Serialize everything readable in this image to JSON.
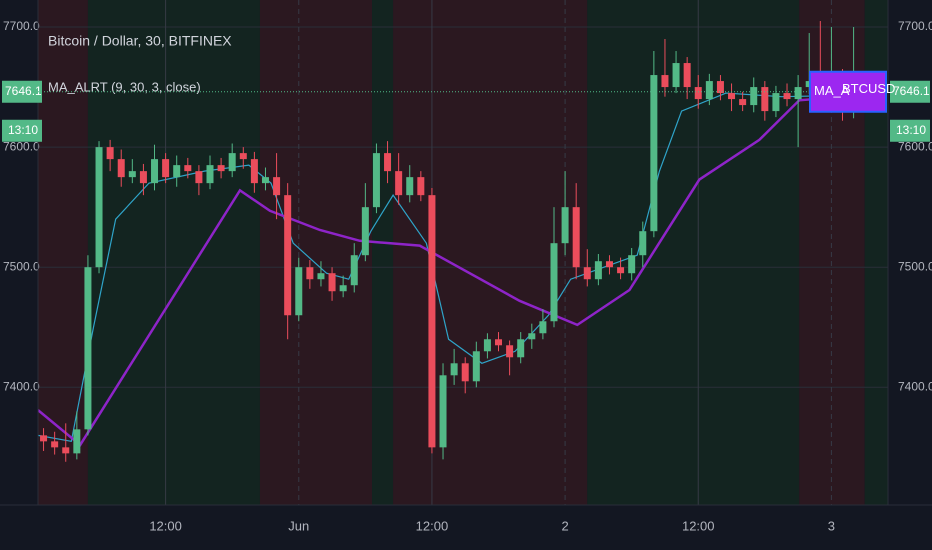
{
  "chart_data": {
    "type": "candlestick",
    "title": "Bitcoin / Dollar, 30, BITFINEX",
    "indicator": "MA_ALRT (9, 30, 3, close)",
    "open": [
      7360,
      7355,
      7350,
      7345,
      7365,
      7500,
      7600,
      7590,
      7575,
      7580,
      7570,
      7590,
      7575,
      7585,
      7580,
      7570,
      7585,
      7580,
      7595,
      7590,
      7570,
      7575,
      7560,
      7460,
      7500,
      7490,
      7495,
      7480,
      7485,
      7510,
      7550,
      7595,
      7580,
      7560,
      7575,
      7560,
      7350,
      7410,
      7420,
      7405,
      7430,
      7440,
      7435,
      7425,
      7440,
      7445,
      7455,
      7520,
      7550,
      7500,
      7490,
      7505,
      7500,
      7495,
      7510,
      7530,
      7660,
      7650,
      7670,
      7650,
      7640,
      7655,
      7645,
      7640,
      7635,
      7650,
      7630,
      7645,
      7640,
      7650,
      7655,
      7640,
      7645,
      7630,
      7650,
      7640
    ],
    "high": [
      7366,
      7363,
      7370,
      7380,
      7510,
      7605,
      7606,
      7598,
      7590,
      7586,
      7602,
      7595,
      7593,
      7591,
      7585,
      7593,
      7591,
      7603,
      7600,
      7596,
      7583,
      7595,
      7570,
      7508,
      7506,
      7505,
      7500,
      7493,
      7520,
      7570,
      7603,
      7605,
      7595,
      7585,
      7580,
      7566,
      7420,
      7432,
      7425,
      7438,
      7445,
      7446,
      7439,
      7446,
      7453,
      7465,
      7550,
      7580,
      7570,
      7515,
      7511,
      7510,
      7508,
      7516,
      7538,
      7680,
      7690,
      7680,
      7675,
      7660,
      7661,
      7660,
      7653,
      7646,
      7658,
      7655,
      7651,
      7653,
      7660,
      7695,
      7705,
      7700,
      7665,
      7700,
      7660,
      7656
    ],
    "low": [
      7347,
      7344,
      7338,
      7340,
      7360,
      7495,
      7580,
      7567,
      7570,
      7560,
      7564,
      7570,
      7567,
      7574,
      7560,
      7565,
      7574,
      7575,
      7582,
      7562,
      7564,
      7540,
      7440,
      7455,
      7482,
      7484,
      7472,
      7475,
      7479,
      7505,
      7545,
      7570,
      7552,
      7554,
      7555,
      7345,
      7340,
      7402,
      7395,
      7400,
      7424,
      7430,
      7410,
      7420,
      7432,
      7440,
      7450,
      7510,
      7490,
      7484,
      7485,
      7494,
      7490,
      7489,
      7500,
      7525,
      7642,
      7645,
      7640,
      7632,
      7635,
      7639,
      7630,
      7630,
      7629,
      7622,
      7625,
      7634,
      7600,
      7644,
      7630,
      7632,
      7622,
      7624,
      7635,
      7634
    ],
    "close": [
      7355,
      7350,
      7345,
      7365,
      7500,
      7600,
      7590,
      7575,
      7580,
      7570,
      7590,
      7575,
      7585,
      7580,
      7570,
      7585,
      7580,
      7595,
      7590,
      7570,
      7575,
      7560,
      7460,
      7500,
      7490,
      7495,
      7480,
      7485,
      7510,
      7550,
      7595,
      7580,
      7560,
      7575,
      7560,
      7350,
      7410,
      7420,
      7405,
      7430,
      7440,
      7435,
      7425,
      7440,
      7445,
      7455,
      7520,
      7550,
      7500,
      7490,
      7505,
      7500,
      7495,
      7510,
      7530,
      7660,
      7650,
      7670,
      7650,
      7640,
      7655,
      7645,
      7640,
      7635,
      7650,
      7630,
      7645,
      7640,
      7650,
      7655,
      7640,
      7645,
      7630,
      7650,
      7640,
      7646
    ],
    "up_color": "#53b987",
    "down_color": "#eb4d5c",
    "series": [
      {
        "color": "#2fa4c9",
        "x": [
          0,
          3,
          5,
          7,
          10,
          15,
          19,
          21,
          23,
          26,
          28,
          30,
          32,
          35,
          37,
          40,
          43,
          46,
          48,
          51,
          54,
          56,
          58,
          62,
          67,
          72,
          75.5
        ],
        "values": [
          7360,
          7355,
          7450,
          7540,
          7570,
          7580,
          7585,
          7570,
          7520,
          7495,
          7490,
          7530,
          7560,
          7520,
          7440,
          7420,
          7430,
          7460,
          7490,
          7500,
          7510,
          7580,
          7630,
          7645,
          7642,
          7643,
          7645
        ]
      },
      {
        "color": "#8e24c8",
        "x": [
          0,
          3.8,
          18.2,
          20.9,
          25.4,
          29,
          34.4,
          43.4,
          48.6,
          53.3,
          59.6,
          65,
          68.6,
          74
        ],
        "values": [
          7381,
          7352,
          7564,
          7547,
          7531,
          7522,
          7518,
          7472,
          7452,
          7481,
          7573,
          7606,
          7639,
          7643
        ]
      }
    ],
    "bands": [
      {
        "start": 0,
        "end": 4.5,
        "color": "#2b1820"
      },
      {
        "start": 4.5,
        "end": 20,
        "color": "#132420"
      },
      {
        "start": 20,
        "end": 30.1,
        "color": "#2b1820"
      },
      {
        "start": 30.1,
        "end": 32,
        "color": "#132420"
      },
      {
        "start": 32,
        "end": 49.5,
        "color": "#2b1820"
      },
      {
        "start": 49.5,
        "end": 68.6,
        "color": "#132420"
      },
      {
        "start": 68.6,
        "end": 74.5,
        "color": "#2b1820"
      },
      {
        "start": 74.5,
        "end": 76.6,
        "color": "#132420"
      }
    ],
    "xlim": [
      0,
      76.6
    ],
    "xticks": [
      {
        "value": 11.5,
        "label": "12:00"
      },
      {
        "value": 23.5,
        "label": "Jun"
      },
      {
        "value": 35.5,
        "label": "12:00"
      },
      {
        "value": 47.5,
        "label": "2"
      },
      {
        "value": 59.5,
        "label": "12:00"
      },
      {
        "value": 71.5,
        "label": "3"
      }
    ],
    "ylim": [
      7302,
      7722.5
    ],
    "yticks": [
      {
        "value": 7400,
        "label": "7400.0"
      },
      {
        "value": 7500,
        "label": "7500.0"
      },
      {
        "value": 7600,
        "label": "7600.0"
      },
      {
        "value": 7700,
        "label": "7700.0"
      }
    ],
    "last_price": 7646.1,
    "countdown": "13:10",
    "alert_label": "MA_A",
    "symbol_label": "BTCUSD"
  }
}
